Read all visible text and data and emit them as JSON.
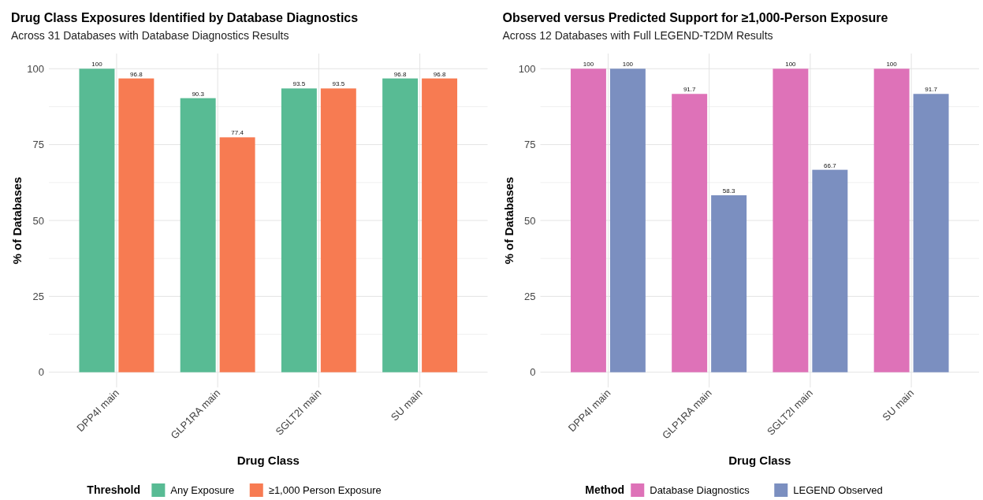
{
  "chart_data": [
    {
      "type": "bar",
      "title": "Drug Class Exposures Identified by Database Diagnostics",
      "subtitle": "Across 31 Databases with Database Diagnostics Results",
      "xlabel": "Drug Class",
      "ylabel": "% of Databases",
      "legend_title": "Threshold",
      "categories": [
        "DPP4I main",
        "GLP1RA main",
        "SGLT2I main",
        "SU main"
      ],
      "series": [
        {
          "name": "Any Exposure",
          "color": "#58bb94",
          "values": [
            100,
            90.3,
            93.5,
            96.8
          ]
        },
        {
          "name": "≥1,000 Person Exposure",
          "color": "#f77b52",
          "values": [
            96.8,
            77.4,
            93.5,
            96.8
          ]
        }
      ],
      "ylim": [
        -5,
        105
      ],
      "yticks": [
        0,
        25,
        50,
        75,
        100
      ],
      "grid": true,
      "legend": "bottom",
      "data_labels": true
    },
    {
      "type": "bar",
      "title": "Observed versus Predicted Support for ≥1,000-Person Exposure",
      "subtitle": "Across 12 Databases with Full LEGEND-T2DM Results",
      "xlabel": "Drug Class",
      "ylabel": "% of Databases",
      "legend_title": "Method",
      "categories": [
        "DPP4I main",
        "GLP1RA main",
        "SGLT2I main",
        "SU main"
      ],
      "series": [
        {
          "name": "Database Diagnostics",
          "color": "#de72b8",
          "values": [
            100,
            91.7,
            100,
            100
          ]
        },
        {
          "name": "LEGEND Observed",
          "color": "#7b8fc0",
          "values": [
            100,
            58.3,
            66.7,
            91.7
          ]
        }
      ],
      "ylim": [
        -5,
        105
      ],
      "yticks": [
        0,
        25,
        50,
        75,
        100
      ],
      "grid": true,
      "legend": "bottom",
      "data_labels": true
    }
  ]
}
